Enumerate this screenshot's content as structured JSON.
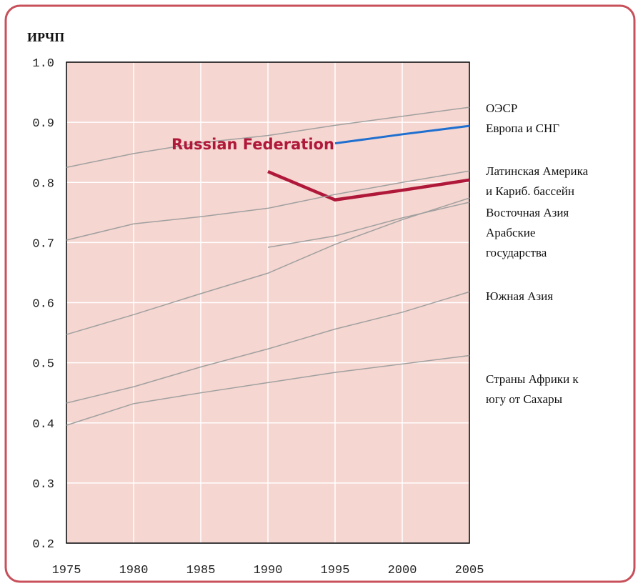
{
  "chart_data": {
    "type": "line",
    "y_label": "ИРЧП",
    "x": [
      1975,
      1980,
      1985,
      1990,
      1995,
      2000,
      2005
    ],
    "xlim": [
      1975,
      2005
    ],
    "xticks": [
      1975,
      1980,
      1985,
      1990,
      1995,
      2000,
      2005
    ],
    "ylim": [
      0.2,
      1.0
    ],
    "yticks": [
      0.2,
      0.3,
      0.4,
      0.5,
      0.6,
      0.7,
      0.8,
      0.9,
      {
        "value": 1.0,
        "label": "1.0"
      }
    ],
    "grid": true,
    "series": [
      {
        "name": "ОЭСР",
        "color": "#a0a0a0",
        "values": [
          0.825,
          0.848,
          0.866,
          0.878,
          0.895,
          0.91,
          0.925
        ]
      },
      {
        "name": "Европа и СНГ",
        "color": "#1f6fd0",
        "values": [
          null,
          null,
          null,
          null,
          0.865,
          0.88,
          0.894
        ]
      },
      {
        "name": "Russian Federation",
        "color": "#b0183a",
        "values": [
          null,
          null,
          null,
          0.818,
          0.771,
          0.787,
          0.804
        ]
      },
      {
        "name": "Латинская Америка\nи Кариб. бассейн",
        "color": "#a0a0a0",
        "values": [
          0.704,
          0.731,
          0.743,
          0.757,
          0.78,
          0.8,
          0.819
        ]
      },
      {
        "name": "Восточная Азия",
        "color": "#a0a0a0",
        "values": [
          0.547,
          0.58,
          0.615,
          0.649,
          0.697,
          0.738,
          0.774
        ]
      },
      {
        "name": "Арабские\nгосударства",
        "color": "#a0a0a0",
        "values": [
          null,
          null,
          null,
          0.692,
          0.711,
          0.741,
          0.767
        ]
      },
      {
        "name": "Южная Азия",
        "color": "#a0a0a0",
        "values": [
          0.433,
          0.46,
          0.493,
          0.523,
          0.556,
          0.584,
          0.618
        ]
      },
      {
        "name": "Страны Африки к\nюгу от Сахары",
        "color": "#a0a0a0",
        "values": [
          0.396,
          0.432,
          0.45,
          0.467,
          0.484,
          0.498,
          0.512
        ]
      }
    ]
  }
}
